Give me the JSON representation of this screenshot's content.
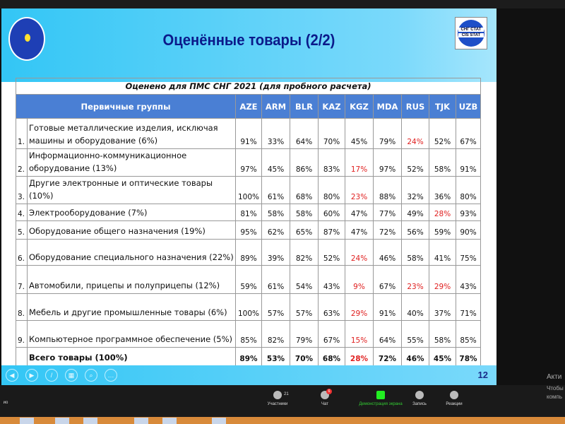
{
  "slide": {
    "title": "Оценённые товары (2/2)",
    "logo_right": [
      "СНГ СТАТ",
      "CIS STAT"
    ],
    "page_number": "12"
  },
  "table": {
    "caption": "Оценено для ПМС СНГ 2021 (для пробного расчета)",
    "group_header": "Первичные группы",
    "columns": [
      "AZE",
      "ARM",
      "BLR",
      "KAZ",
      "KGZ",
      "MDA",
      "RUS",
      "TJK",
      "UZB"
    ],
    "rows": [
      {
        "num": "1.",
        "name": "Готовые металлические изделия, исключая машины и оборудование (6%)",
        "values": [
          "91%",
          "33%",
          "64%",
          "70%",
          "45%",
          "79%",
          "24%",
          "52%",
          "67%"
        ],
        "red": [
          6
        ]
      },
      {
        "num": "2.",
        "name": "Информационно-коммуникационное оборудование (13%)",
        "values": [
          "97%",
          "45%",
          "86%",
          "83%",
          "17%",
          "97%",
          "52%",
          "58%",
          "91%"
        ],
        "red": [
          4
        ]
      },
      {
        "num": "3.",
        "name": "Другие электронные и оптические товары (10%)",
        "values": [
          "100%",
          "61%",
          "68%",
          "80%",
          "23%",
          "88%",
          "32%",
          "36%",
          "80%"
        ],
        "red": [
          4
        ]
      },
      {
        "num": "4.",
        "name": "Электрооборудование (7%)",
        "values": [
          "81%",
          "58%",
          "58%",
          "60%",
          "47%",
          "77%",
          "49%",
          "28%",
          "93%"
        ],
        "red": [
          7
        ]
      },
      {
        "num": "5.",
        "name": "Оборудование общего назначения (19%)",
        "values": [
          "95%",
          "62%",
          "65%",
          "87%",
          "47%",
          "72%",
          "56%",
          "59%",
          "90%"
        ],
        "red": []
      },
      {
        "num": "6.",
        "name": "Оборудование специального назначения (22%)",
        "values": [
          "89%",
          "39%",
          "82%",
          "52%",
          "24%",
          "46%",
          "58%",
          "41%",
          "75%"
        ],
        "red": [
          4
        ]
      },
      {
        "num": "7.",
        "name": "Автомобили, прицепы и полуприцепы (12%)",
        "values": [
          "59%",
          "61%",
          "54%",
          "43%",
          "9%",
          "67%",
          "23%",
          "29%",
          "43%"
        ],
        "red": [
          4,
          6,
          7
        ]
      },
      {
        "num": "8.",
        "name": "Мебель и другие промышленные товары (6%)",
        "values": [
          "100%",
          "57%",
          "57%",
          "63%",
          "29%",
          "91%",
          "40%",
          "37%",
          "71%"
        ],
        "red": [
          4
        ]
      },
      {
        "num": "9.",
        "name": "Компьютерное программное обеспечение (5%)",
        "values": [
          "85%",
          "82%",
          "79%",
          "67%",
          "15%",
          "64%",
          "55%",
          "58%",
          "85%"
        ],
        "red": [
          4
        ]
      }
    ],
    "total": {
      "name": "Всего товары (100%)",
      "values": [
        "89%",
        "53%",
        "70%",
        "68%",
        "28%",
        "72%",
        "46%",
        "45%",
        "78%"
      ],
      "red": [
        4
      ]
    },
    "highlight_color": "#e02020",
    "header_color": "#4a7fd4"
  },
  "zoom_toolbar": {
    "video_label": "ио",
    "participants_label": "Участники",
    "participants_count": "21",
    "chat_label": "Чат",
    "chat_badge": "6",
    "share_label": "Демонстрация экрана",
    "record_label": "Запись",
    "reactions_label": "Реакции"
  },
  "watermark": [
    "Акти",
    "Чтобы",
    "компь"
  ]
}
